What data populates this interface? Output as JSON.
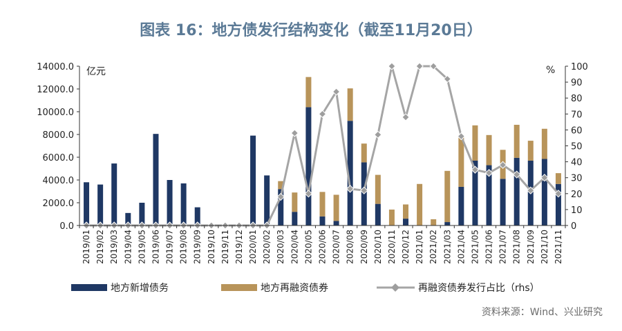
{
  "title": "图表 16：地方债发行结构变化（截至11月20日）",
  "source": "资料来源：Wind、兴业研究",
  "chart_data": {
    "type": "bar",
    "stacked": true,
    "categories": [
      "2019/01",
      "2019/02",
      "2019/03",
      "2019/04",
      "2019/05",
      "2019/06",
      "2019/07",
      "2019/08",
      "2019/09",
      "2019/10",
      "2019/11",
      "2019/12",
      "2020/01",
      "2020/02",
      "2020/03",
      "2020/04",
      "2020/05",
      "2020/06",
      "2020/07",
      "2020/08",
      "2020/09",
      "2020/10",
      "2020/11",
      "2020/12",
      "2021/01",
      "2021/02",
      "2021/03",
      "2021/04",
      "2021/05",
      "2021/06",
      "2021/07",
      "2021/08",
      "2021/09",
      "2021/10",
      "2021/11"
    ],
    "y_left_unit": "亿元",
    "y_right_unit": "%",
    "ylim_left": [
      0,
      14000
    ],
    "ylim_right": [
      0,
      100
    ],
    "yticks_left": [
      "0.0",
      "2000.0",
      "4000.0",
      "6000.0",
      "8000.0",
      "10000.0",
      "12000.0",
      "14000.0"
    ],
    "yticks_right": [
      "0",
      "10",
      "20",
      "30",
      "40",
      "50",
      "60",
      "70",
      "80",
      "90",
      "100"
    ],
    "series": [
      {
        "name": "地方新增债务",
        "kind": "bar",
        "axis": "left",
        "color": "#1f3864",
        "values": [
          3800,
          3600,
          5450,
          1100,
          2000,
          8050,
          4000,
          3700,
          1600,
          0,
          0,
          0,
          7900,
          4400,
          3200,
          1200,
          10400,
          800,
          400,
          9200,
          5550,
          1900,
          0,
          600,
          0,
          0,
          300,
          3400,
          5700,
          5300,
          4100,
          5950,
          5700,
          5850,
          3650
        ]
      },
      {
        "name": "地方再融资债券",
        "kind": "bar",
        "axis": "left",
        "color": "#b8945a",
        "values": [
          0,
          0,
          0,
          0,
          0,
          0,
          0,
          0,
          0,
          0,
          0,
          0,
          0,
          0,
          700,
          1700,
          2650,
          2150,
          2300,
          2850,
          1650,
          2550,
          1400,
          1250,
          3650,
          550,
          4500,
          4350,
          3100,
          2650,
          2550,
          2900,
          1750,
          2650,
          950
        ]
      },
      {
        "name": "再融资债券发行占比（rhs）",
        "kind": "line",
        "axis": "right",
        "color": "#a5a5a5",
        "values": [
          0,
          0,
          0,
          0,
          0,
          0,
          0,
          0,
          0,
          0,
          0,
          0,
          0,
          0,
          18,
          58,
          20,
          70,
          84,
          23,
          22,
          57,
          100,
          68,
          100,
          100,
          92,
          56,
          35,
          33,
          38,
          32,
          22,
          30,
          20
        ]
      }
    ],
    "legend_position": "bottom",
    "grid": false
  }
}
